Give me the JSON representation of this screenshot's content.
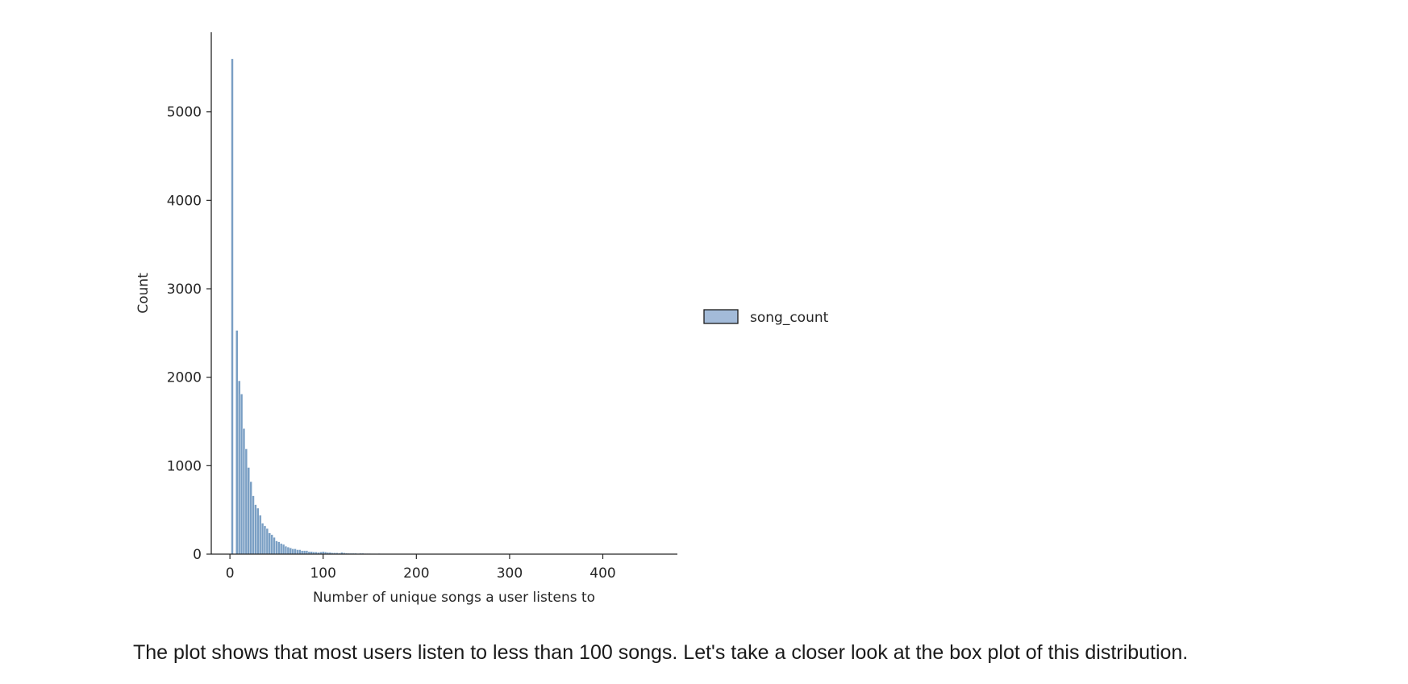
{
  "chart_data": {
    "type": "bar",
    "xlabel": "Number of unique songs a user listens to",
    "ylabel": "Count",
    "xlim": [
      -20,
      480
    ],
    "ylim": [
      0,
      5900
    ],
    "xticks": [
      0,
      100,
      200,
      300,
      400
    ],
    "yticks": [
      0,
      1000,
      2000,
      3000,
      4000,
      5000
    ],
    "grid": false,
    "legend": {
      "position": "right",
      "entries": [
        "song_count"
      ]
    },
    "series": [
      {
        "name": "song_count",
        "color": "#7a9fc4",
        "edge_color": "#ffffff",
        "bin_width": 2.5,
        "x": [
          2.5,
          5,
          7.5,
          10,
          12.5,
          15,
          17.5,
          20,
          22.5,
          25,
          27.5,
          30,
          32.5,
          35,
          37.5,
          40,
          42.5,
          45,
          47.5,
          50,
          52.5,
          55,
          57.5,
          60,
          62.5,
          65,
          67.5,
          70,
          72.5,
          75,
          77.5,
          80,
          82.5,
          85,
          87.5,
          90,
          92.5,
          95,
          97.5,
          100,
          102.5,
          105,
          107.5,
          110,
          112.5,
          115,
          117.5,
          120,
          122.5,
          125,
          127.5,
          130,
          132.5,
          135,
          137.5,
          140,
          142.5,
          145,
          147.5,
          150,
          152.5,
          155,
          157.5,
          160,
          165,
          170,
          180,
          190,
          200,
          220,
          240,
          260,
          300,
          350,
          400,
          440,
          460
        ],
        "values": [
          5600,
          0,
          2530,
          1960,
          1810,
          1420,
          1190,
          980,
          820,
          660,
          560,
          520,
          440,
          350,
          320,
          290,
          240,
          220,
          190,
          150,
          140,
          120,
          110,
          90,
          80,
          70,
          60,
          60,
          50,
          50,
          40,
          40,
          40,
          30,
          30,
          25,
          25,
          20,
          25,
          30,
          25,
          20,
          20,
          15,
          15,
          15,
          12,
          20,
          15,
          12,
          10,
          10,
          10,
          10,
          8,
          10,
          10,
          8,
          8,
          8,
          6,
          6,
          5,
          8,
          5,
          4,
          4,
          3,
          3,
          3,
          2,
          2,
          2,
          1,
          1,
          1,
          1
        ]
      }
    ]
  },
  "caption": "The plot shows that most users listen to less than 100 songs. Let's take a closer look at the box plot of this distribution."
}
